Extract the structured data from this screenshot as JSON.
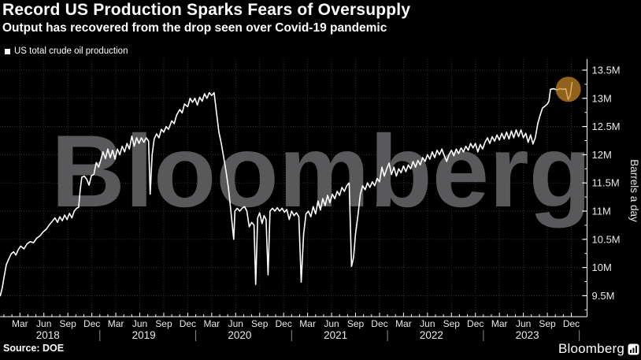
{
  "header": {
    "title": "Record US Production Sparks Fears of Oversupply",
    "subtitle": "Output has recovered from the drop seen over Covid-19 pandemic"
  },
  "legend": {
    "label": "US total crude oil production",
    "swatch_color": "#ffffff"
  },
  "watermark": "Bloomberg",
  "footer": {
    "source": "Source: DOE",
    "brand": "Bloomberg"
  },
  "colors": {
    "background": "#000000",
    "line": "#ffffff",
    "grid": "#303030",
    "axis": "#ffffff",
    "tick_text": "#e8e8e8",
    "watermark": "#59595b",
    "highlight": "#c78827"
  },
  "chart_data": {
    "type": "line",
    "title": "Record US Production Sparks Fears of Oversupply",
    "subtitle": "Output has recovered from the drop seen over Covid-19 pandemic",
    "unit": "million barrels a day",
    "ylabel": "Barrels a day",
    "ylim": [
      9.1,
      13.7
    ],
    "grid": true,
    "legend_position": "top-left",
    "y_axis": {
      "side": "right",
      "ticks": [
        9.5,
        10,
        10.5,
        11,
        11.5,
        12,
        12.5,
        13,
        13.5
      ],
      "tick_labels": [
        "9.5M",
        "10M",
        "10.5M",
        "11M",
        "11.5M",
        "12M",
        "12.5M",
        "13M",
        "13.5M"
      ],
      "minor_step": 0.25,
      "title": "Barrels a day"
    },
    "x_axis": {
      "start": "Jan 2018",
      "end": "Dec 2023",
      "quarter_labels": [
        "Mar",
        "Jun",
        "Sep",
        "Dec"
      ],
      "quarter_month_offsets": [
        2,
        5,
        8,
        11
      ],
      "years": [
        "2018",
        "2019",
        "2020",
        "2021",
        "2022",
        "2023"
      ]
    },
    "highlight": {
      "month": 70.62,
      "value": 13.16,
      "radius_px": 16,
      "note_shape": "circle"
    },
    "series": [
      {
        "name": "US total crude oil production",
        "points": [
          [
            -0.45,
            9.5
          ],
          [
            -0.2,
            9.65
          ],
          [
            0,
            9.82
          ],
          [
            0.3,
            10.05
          ],
          [
            0.6,
            10.15
          ],
          [
            0.9,
            10.24
          ],
          [
            1.2,
            10.28
          ],
          [
            1.5,
            10.22
          ],
          [
            1.8,
            10.32
          ],
          [
            2.1,
            10.38
          ],
          [
            2.5,
            10.33
          ],
          [
            2.9,
            10.42
          ],
          [
            3.3,
            10.46
          ],
          [
            3.7,
            10.44
          ],
          [
            4.1,
            10.52
          ],
          [
            4.5,
            10.56
          ],
          [
            4.9,
            10.63
          ],
          [
            5.3,
            10.68
          ],
          [
            5.7,
            10.76
          ],
          [
            6.1,
            10.83
          ],
          [
            6.4,
            10.88
          ],
          [
            6.7,
            10.8
          ],
          [
            7,
            10.9
          ],
          [
            7.3,
            10.83
          ],
          [
            7.6,
            10.93
          ],
          [
            7.9,
            10.85
          ],
          [
            8.2,
            10.96
          ],
          [
            8.5,
            10.88
          ],
          [
            8.8,
            11.0
          ],
          [
            9.1,
            11.05
          ],
          [
            9.35,
            11.07
          ],
          [
            9.55,
            11.38
          ],
          [
            9.75,
            11.6
          ],
          [
            10.05,
            11.62
          ],
          [
            10.35,
            11.57
          ],
          [
            10.65,
            11.46
          ],
          [
            10.95,
            11.63
          ],
          [
            11.25,
            11.65
          ],
          [
            11.55,
            11.86
          ],
          [
            11.85,
            11.78
          ],
          [
            12.1,
            11.9
          ],
          [
            12.4,
            12.05
          ],
          [
            12.7,
            11.93
          ],
          [
            13,
            12.1
          ],
          [
            13.3,
            11.95
          ],
          [
            13.6,
            12.08
          ],
          [
            13.9,
            11.92
          ],
          [
            14.2,
            12.1
          ],
          [
            14.5,
            12.0
          ],
          [
            14.8,
            12.15
          ],
          [
            15.1,
            12.05
          ],
          [
            15.4,
            12.2
          ],
          [
            15.7,
            12.1
          ],
          [
            16,
            12.33
          ],
          [
            16.3,
            12.15
          ],
          [
            16.6,
            12.3
          ],
          [
            16.9,
            12.2
          ],
          [
            17.2,
            12.3
          ],
          [
            17.5,
            12.22
          ],
          [
            17.8,
            12.3
          ],
          [
            18.1,
            12.24
          ],
          [
            18.3,
            11.3
          ],
          [
            18.55,
            12.0
          ],
          [
            18.8,
            12.28
          ],
          [
            19.1,
            12.37
          ],
          [
            19.4,
            12.3
          ],
          [
            19.7,
            12.45
          ],
          [
            20,
            12.4
          ],
          [
            20.3,
            12.5
          ],
          [
            20.6,
            12.45
          ],
          [
            21,
            12.6
          ],
          [
            21.3,
            12.55
          ],
          [
            21.6,
            12.7
          ],
          [
            22,
            12.8
          ],
          [
            22.3,
            12.74
          ],
          [
            22.6,
            12.9
          ],
          [
            23,
            12.85
          ],
          [
            23.3,
            13.0
          ],
          [
            23.6,
            12.93
          ],
          [
            23.9,
            13.0
          ],
          [
            24.2,
            12.88
          ],
          [
            24.5,
            13.02
          ],
          [
            24.8,
            12.95
          ],
          [
            25.1,
            13.08
          ],
          [
            25.4,
            13.0
          ],
          [
            25.7,
            13.1
          ],
          [
            26,
            13.05
          ],
          [
            26.3,
            13.1
          ],
          [
            26.6,
            12.75
          ],
          [
            26.9,
            12.4
          ],
          [
            27.2,
            12.2
          ],
          [
            27.5,
            11.95
          ],
          [
            27.8,
            11.7
          ],
          [
            28.1,
            11.4
          ],
          [
            28.4,
            11.0
          ],
          [
            28.6,
            10.72
          ],
          [
            28.75,
            10.5
          ],
          [
            28.9,
            11.0
          ],
          [
            29.2,
            11.05
          ],
          [
            29.5,
            11.0
          ],
          [
            29.8,
            11.05
          ],
          [
            30.1,
            11.08
          ],
          [
            30.4,
            11.0
          ],
          [
            30.7,
            10.72
          ],
          [
            31,
            10.8
          ],
          [
            31.3,
            10.75
          ],
          [
            31.5,
            9.7
          ],
          [
            31.75,
            10.88
          ],
          [
            32,
            10.97
          ],
          [
            32.3,
            10.78
          ],
          [
            32.55,
            10.92
          ],
          [
            32.8,
            10.85
          ],
          [
            33.05,
            9.87
          ],
          [
            33.3,
            11.0
          ],
          [
            33.6,
            11.05
          ],
          [
            33.9,
            11.0
          ],
          [
            34.2,
            11.06
          ],
          [
            34.5,
            11.0
          ],
          [
            34.8,
            11.05
          ],
          [
            35.1,
            10.98
          ],
          [
            35.4,
            11.03
          ],
          [
            35.7,
            10.85
          ],
          [
            36,
            11.0
          ],
          [
            36.3,
            10.92
          ],
          [
            36.6,
            10.97
          ],
          [
            36.9,
            10.9
          ],
          [
            37.2,
            9.74
          ],
          [
            37.5,
            10.6
          ],
          [
            37.8,
            10.95
          ],
          [
            38.1,
            11.0
          ],
          [
            38.4,
            10.9
          ],
          [
            38.7,
            11.08
          ],
          [
            39,
            10.95
          ],
          [
            39.3,
            11.18
          ],
          [
            39.6,
            11.02
          ],
          [
            39.9,
            11.22
          ],
          [
            40.2,
            11.1
          ],
          [
            40.5,
            11.28
          ],
          [
            40.8,
            11.15
          ],
          [
            41.1,
            11.3
          ],
          [
            41.4,
            11.22
          ],
          [
            41.7,
            11.35
          ],
          [
            42,
            11.28
          ],
          [
            42.3,
            11.42
          ],
          [
            42.6,
            11.35
          ],
          [
            42.9,
            11.45
          ],
          [
            43.2,
            11.5
          ],
          [
            43.5,
            10.02
          ],
          [
            43.75,
            10.18
          ],
          [
            44,
            10.6
          ],
          [
            44.3,
            10.93
          ],
          [
            44.6,
            11.3
          ],
          [
            44.9,
            11.45
          ],
          [
            45.2,
            11.38
          ],
          [
            45.5,
            11.5
          ],
          [
            45.8,
            11.42
          ],
          [
            46.1,
            11.52
          ],
          [
            46.4,
            11.45
          ],
          [
            46.7,
            11.58
          ],
          [
            47,
            11.52
          ],
          [
            47.3,
            11.78
          ],
          [
            47.6,
            11.62
          ],
          [
            47.9,
            11.75
          ],
          [
            48.2,
            11.85
          ],
          [
            48.5,
            11.65
          ],
          [
            48.8,
            11.78
          ],
          [
            49.1,
            11.62
          ],
          [
            49.4,
            11.75
          ],
          [
            49.7,
            11.68
          ],
          [
            50,
            11.8
          ],
          [
            50.3,
            11.7
          ],
          [
            50.6,
            11.82
          ],
          [
            50.9,
            11.75
          ],
          [
            51.2,
            11.88
          ],
          [
            51.5,
            11.78
          ],
          [
            51.8,
            11.9
          ],
          [
            52.1,
            11.82
          ],
          [
            52.4,
            11.95
          ],
          [
            52.7,
            11.88
          ],
          [
            53,
            12.0
          ],
          [
            53.3,
            11.92
          ],
          [
            53.6,
            12.05
          ],
          [
            53.9,
            11.95
          ],
          [
            54.2,
            12.08
          ],
          [
            54.5,
            12.0
          ],
          [
            54.8,
            12.1
          ],
          [
            55.1,
            11.98
          ],
          [
            55.4,
            11.88
          ],
          [
            55.7,
            12.0
          ],
          [
            56,
            12.08
          ],
          [
            56.3,
            11.98
          ],
          [
            56.6,
            12.1
          ],
          [
            56.9,
            12.02
          ],
          [
            57.2,
            12.12
          ],
          [
            57.5,
            12.05
          ],
          [
            57.8,
            12.15
          ],
          [
            58.1,
            12.08
          ],
          [
            58.4,
            12.2
          ],
          [
            58.7,
            12.12
          ],
          [
            59,
            12.2
          ],
          [
            59.3,
            12.05
          ],
          [
            59.6,
            12.18
          ],
          [
            59.9,
            12.1
          ],
          [
            60.2,
            12.22
          ],
          [
            60.5,
            12.3
          ],
          [
            60.8,
            12.2
          ],
          [
            61.1,
            12.32
          ],
          [
            61.4,
            12.24
          ],
          [
            61.7,
            12.35
          ],
          [
            62,
            12.26
          ],
          [
            62.3,
            12.38
          ],
          [
            62.6,
            12.28
          ],
          [
            62.9,
            12.4
          ],
          [
            63.2,
            12.28
          ],
          [
            63.5,
            12.42
          ],
          [
            63.8,
            12.3
          ],
          [
            64.1,
            12.44
          ],
          [
            64.4,
            12.32
          ],
          [
            64.7,
            12.44
          ],
          [
            65,
            12.3
          ],
          [
            65.3,
            12.38
          ],
          [
            65.6,
            12.22
          ],
          [
            65.9,
            12.35
          ],
          [
            66.2,
            12.19
          ],
          [
            66.5,
            12.3
          ],
          [
            66.8,
            12.55
          ],
          [
            67.1,
            12.7
          ],
          [
            67.4,
            12.83
          ],
          [
            67.7,
            12.86
          ],
          [
            68,
            12.9
          ],
          [
            68.2,
            12.95
          ],
          [
            68.4,
            13.16
          ],
          [
            68.8,
            13.17
          ],
          [
            69.2,
            13.15
          ],
          [
            69.6,
            13.17
          ],
          [
            70,
            13.16
          ],
          [
            70.3,
            13.17
          ],
          [
            70.6,
            12.98
          ],
          [
            70.85,
            13.05
          ],
          [
            71.1,
            13.28
          ]
        ]
      }
    ]
  }
}
